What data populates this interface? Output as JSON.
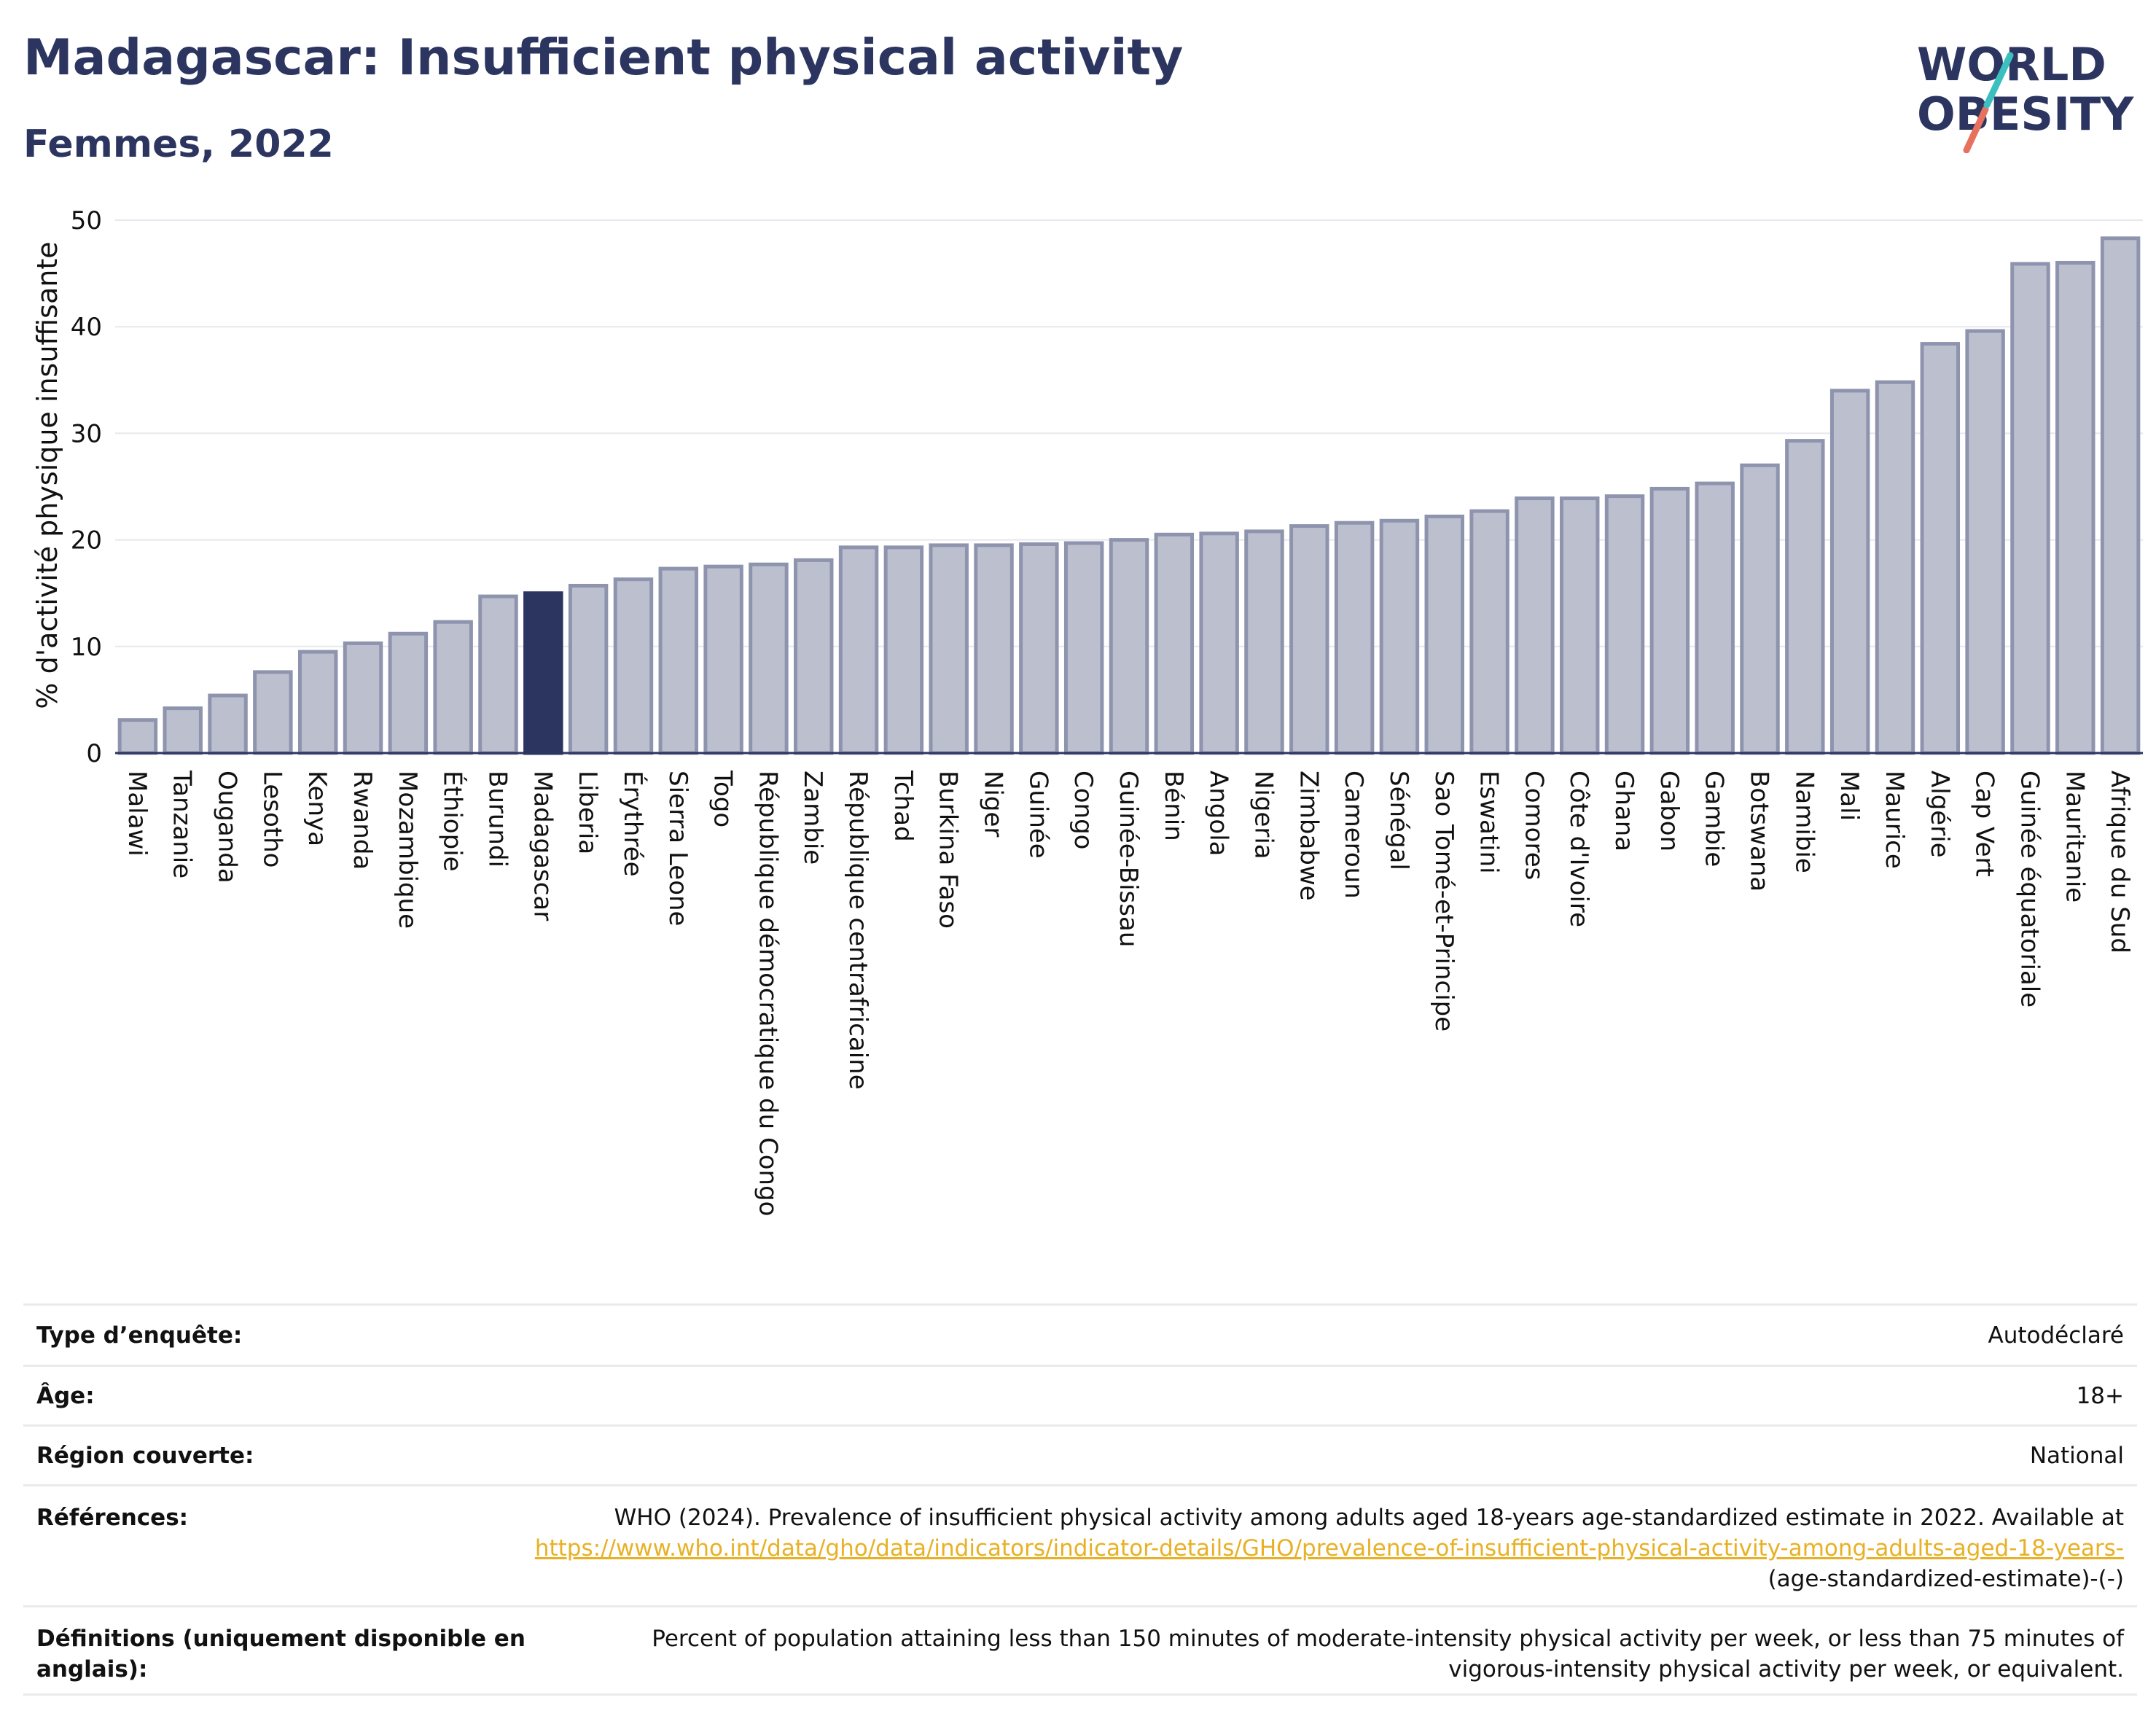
{
  "header": {
    "title": "Madagascar: Insufficient physical activity",
    "subtitle": "Femmes, 2022"
  },
  "logo": {
    "line1": "WORLD",
    "line2": "OBESITY"
  },
  "colors": {
    "bar_fill": "#bcc0ce",
    "bar_stroke": "#8f94ae",
    "highlight": "#2b3560",
    "title": "#2b3560",
    "link": "#e8b125",
    "logo_teal": "#3bbfbf",
    "logo_coral": "#e8705f"
  },
  "chart_data": {
    "type": "bar",
    "title": "Madagascar: Insufficient physical activity",
    "subtitle": "Femmes, 2022",
    "ylabel": "% d'activité physique insuffisante",
    "ylim": [
      0,
      50
    ],
    "yticks": [
      0,
      10,
      20,
      30,
      40,
      50
    ],
    "grid": true,
    "highlight": "Madagascar",
    "categories": [
      "Malawi",
      "Tanzanie",
      "Ouganda",
      "Lesotho",
      "Kenya",
      "Rwanda",
      "Mozambique",
      "Éthiopie",
      "Burundi",
      "Madagascar",
      "Liberia",
      "Érythrée",
      "Sierra Leone",
      "Togo",
      "République démocratique du Congo",
      "Zambie",
      "République centrafricaine",
      "Tchad",
      "Burkina Faso",
      "Niger",
      "Guinée",
      "Congo",
      "Guinée-Bissau",
      "Bénin",
      "Angola",
      "Nigeria",
      "Zimbabwe",
      "Cameroun",
      "Sénégal",
      "Sao Tomé-et-Principe",
      "Eswatini",
      "Comores",
      "Côte d'Ivoire",
      "Ghana",
      "Gabon",
      "Gambie",
      "Botswana",
      "Namibie",
      "Mali",
      "Maurice",
      "Algérie",
      "Cap Vert",
      "Guinée équatoriale",
      "Mauritanie",
      "Afrique du Sud"
    ],
    "values": [
      3.1,
      4.2,
      5.4,
      7.6,
      9.5,
      10.3,
      11.2,
      12.3,
      14.7,
      15.0,
      15.7,
      16.3,
      17.3,
      17.5,
      17.7,
      18.1,
      19.3,
      19.3,
      19.5,
      19.5,
      19.6,
      19.7,
      20.0,
      20.5,
      20.6,
      20.8,
      21.3,
      21.6,
      21.8,
      22.2,
      22.7,
      23.9,
      23.9,
      24.1,
      24.8,
      25.3,
      27.0,
      29.3,
      34.0,
      34.8,
      38.4,
      39.6,
      45.9,
      46.0,
      48.3
    ]
  },
  "info": {
    "survey_label": "Type d’enquête:",
    "survey_value": "Autodéclaré",
    "age_label": "Âge:",
    "age_value": "18+",
    "region_label": "Région couverte:",
    "region_value": "National",
    "refs_label": "Références:",
    "refs_text": "WHO (2024). Prevalence of insufficient physical activity among adults aged 18-years age-standardized estimate in 2022. Available at",
    "refs_link_1": "https://www.who.int/data/gho/data/indicators/indicator-details/GHO/prevalence-of-insufficient-physical-activity-among-adults-aged-",
    "refs_link_2": "18-years-",
    "refs_tail": "(age-standardized-estimate)-(-)",
    "def_label": "Définitions (uniquement disponible en anglais):",
    "def_value": "Percent of population attaining less than 150 minutes of moderate-intensity physical activity per week, or less than 75 minutes of vigorous-intensity physical activity per week, or equivalent."
  }
}
